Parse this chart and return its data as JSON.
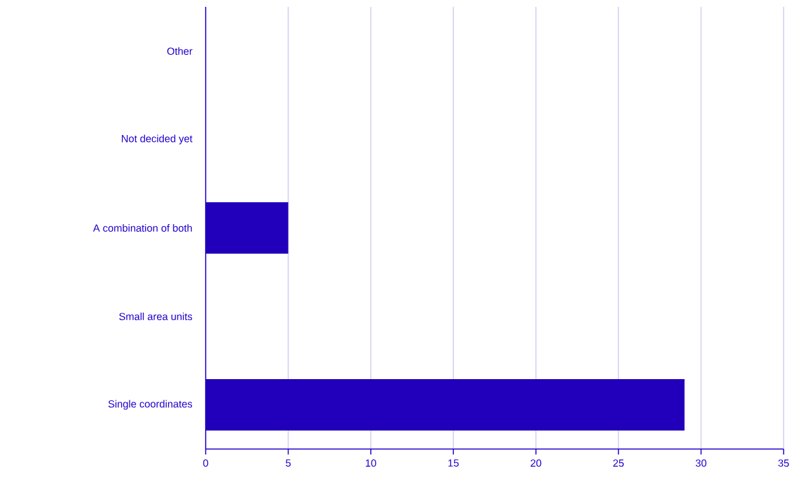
{
  "chart_data": {
    "type": "bar",
    "orientation": "horizontal",
    "categories": [
      "Other",
      "Not decided yet",
      "A combination of both",
      "Small area units",
      "Single coordinates"
    ],
    "values": [
      0,
      0,
      5,
      0,
      29
    ],
    "color": "#2200bb",
    "xlim": [
      0,
      35
    ],
    "xticks": [
      0,
      5,
      10,
      15,
      20,
      25,
      30,
      35
    ],
    "grid": "x"
  }
}
